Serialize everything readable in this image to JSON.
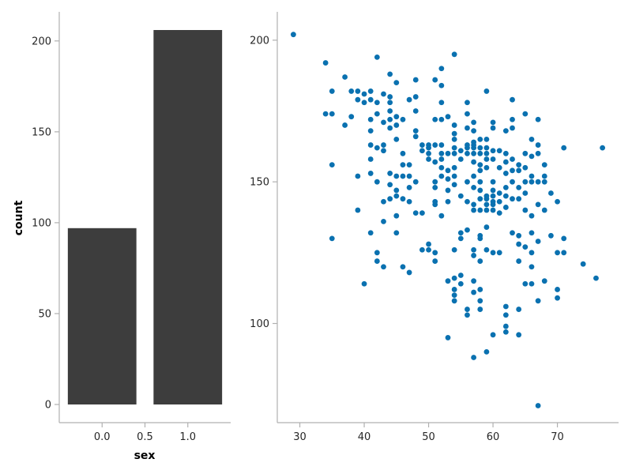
{
  "chart_data": [
    {
      "type": "bar",
      "categories": [
        "0.0",
        "1.0"
      ],
      "values": [
        97,
        206
      ],
      "xlabel": "sex",
      "ylabel": "count",
      "ylim": [
        -10,
        216
      ],
      "yticks": [
        0,
        50,
        100,
        150,
        200
      ],
      "xticks": [
        "0.0",
        "0.5",
        "1.0"
      ],
      "x_positions": [
        0,
        1
      ],
      "bar_color": "#3d3d3d",
      "grid": false
    },
    {
      "type": "scatter",
      "xlabel": "",
      "ylabel": "",
      "xlim": [
        26.5,
        79.5
      ],
      "ylim": [
        65,
        210
      ],
      "xticks": [
        30,
        40,
        50,
        60,
        70
      ],
      "yticks": [
        100,
        150,
        200
      ],
      "point_color": "#0a71b0",
      "grid": false,
      "points": [
        [
          29,
          202
        ],
        [
          34,
          192
        ],
        [
          35,
          182
        ],
        [
          34,
          174
        ],
        [
          35,
          174
        ],
        [
          35,
          156
        ],
        [
          35,
          130
        ],
        [
          37,
          187
        ],
        [
          37,
          170
        ],
        [
          38,
          182
        ],
        [
          38,
          173
        ],
        [
          39,
          182
        ],
        [
          39,
          179
        ],
        [
          39,
          152
        ],
        [
          39,
          140
        ],
        [
          40,
          181
        ],
        [
          40,
          178
        ],
        [
          40,
          114
        ],
        [
          41,
          182
        ],
        [
          41,
          179
        ],
        [
          41,
          172
        ],
        [
          41,
          168
        ],
        [
          41,
          163
        ],
        [
          41,
          158
        ],
        [
          41,
          153
        ],
        [
          41,
          132
        ],
        [
          42,
          194
        ],
        [
          42,
          178
        ],
        [
          42,
          174
        ],
        [
          42,
          162
        ],
        [
          42,
          150
        ],
        [
          42,
          125
        ],
        [
          42,
          122
        ],
        [
          43,
          181
        ],
        [
          43,
          171
        ],
        [
          43,
          163
        ],
        [
          43,
          161
        ],
        [
          43,
          143
        ],
        [
          43,
          136
        ],
        [
          43,
          120
        ],
        [
          44,
          188
        ],
        [
          44,
          180
        ],
        [
          44,
          178
        ],
        [
          44,
          175
        ],
        [
          44,
          172
        ],
        [
          44,
          169
        ],
        [
          44,
          153
        ],
        [
          44,
          149
        ],
        [
          44,
          144
        ],
        [
          45,
          185
        ],
        [
          45,
          173
        ],
        [
          45,
          170
        ],
        [
          45,
          165
        ],
        [
          45,
          152
        ],
        [
          45,
          147
        ],
        [
          45,
          145
        ],
        [
          45,
          132
        ],
        [
          45,
          138
        ],
        [
          46,
          172
        ],
        [
          46,
          160
        ],
        [
          46,
          156
        ],
        [
          46,
          152
        ],
        [
          46,
          144
        ],
        [
          46,
          120
        ],
        [
          47,
          179
        ],
        [
          47,
          156
        ],
        [
          47,
          152
        ],
        [
          47,
          148
        ],
        [
          47,
          143
        ],
        [
          47,
          118
        ],
        [
          48,
          186
        ],
        [
          48,
          180
        ],
        [
          48,
          175
        ],
        [
          48,
          168
        ],
        [
          48,
          166
        ],
        [
          48,
          150
        ],
        [
          48,
          139
        ],
        [
          49,
          163
        ],
        [
          49,
          161
        ],
        [
          49,
          139
        ],
        [
          49,
          126
        ],
        [
          50,
          163
        ],
        [
          50,
          162
        ],
        [
          50,
          160
        ],
        [
          50,
          158
        ],
        [
          50,
          128
        ],
        [
          50,
          126
        ],
        [
          51,
          186
        ],
        [
          51,
          172
        ],
        [
          51,
          163
        ],
        [
          51,
          157
        ],
        [
          51,
          150
        ],
        [
          51,
          148
        ],
        [
          51,
          143
        ],
        [
          51,
          142
        ],
        [
          51,
          125
        ],
        [
          51,
          122
        ],
        [
          52,
          190
        ],
        [
          52,
          184
        ],
        [
          52,
          178
        ],
        [
          52,
          172
        ],
        [
          52,
          163
        ],
        [
          52,
          160
        ],
        [
          52,
          158
        ],
        [
          52,
          155
        ],
        [
          52,
          152
        ],
        [
          52,
          138
        ],
        [
          53,
          173
        ],
        [
          53,
          160
        ],
        [
          53,
          154
        ],
        [
          53,
          151
        ],
        [
          53,
          147
        ],
        [
          53,
          143
        ],
        [
          53,
          115
        ],
        [
          53,
          95
        ],
        [
          54,
          195
        ],
        [
          54,
          170
        ],
        [
          54,
          167
        ],
        [
          54,
          165
        ],
        [
          54,
          162
        ],
        [
          54,
          160
        ],
        [
          54,
          155
        ],
        [
          54,
          152
        ],
        [
          54,
          149
        ],
        [
          54,
          126
        ],
        [
          54,
          116
        ],
        [
          54,
          112
        ],
        [
          54,
          110
        ],
        [
          54,
          108
        ],
        [
          55,
          161
        ],
        [
          55,
          158
        ],
        [
          55,
          145
        ],
        [
          55,
          132
        ],
        [
          55,
          130
        ],
        [
          55,
          117
        ],
        [
          55,
          114
        ],
        [
          56,
          178
        ],
        [
          56,
          174
        ],
        [
          56,
          169
        ],
        [
          56,
          163
        ],
        [
          56,
          162
        ],
        [
          56,
          160
        ],
        [
          56,
          150
        ],
        [
          56,
          143
        ],
        [
          56,
          133
        ],
        [
          56,
          105
        ],
        [
          56,
          103
        ],
        [
          57,
          171
        ],
        [
          57,
          168
        ],
        [
          57,
          164
        ],
        [
          57,
          163
        ],
        [
          57,
          162
        ],
        [
          57,
          160
        ],
        [
          57,
          157
        ],
        [
          57,
          152
        ],
        [
          57,
          148
        ],
        [
          57,
          142
        ],
        [
          57,
          140
        ],
        [
          57,
          126
        ],
        [
          57,
          124
        ],
        [
          57,
          115
        ],
        [
          57,
          111
        ],
        [
          57,
          88
        ],
        [
          58,
          165
        ],
        [
          58,
          162
        ],
        [
          58,
          160
        ],
        [
          58,
          156
        ],
        [
          58,
          154
        ],
        [
          58,
          150
        ],
        [
          58,
          147
        ],
        [
          58,
          144
        ],
        [
          58,
          140
        ],
        [
          58,
          131
        ],
        [
          58,
          130
        ],
        [
          58,
          122
        ],
        [
          58,
          112
        ],
        [
          58,
          108
        ],
        [
          58,
          105
        ],
        [
          59,
          182
        ],
        [
          59,
          165
        ],
        [
          59,
          162
        ],
        [
          59,
          160
        ],
        [
          59,
          158
        ],
        [
          59,
          155
        ],
        [
          59,
          145
        ],
        [
          59,
          144
        ],
        [
          59,
          142
        ],
        [
          59,
          140
        ],
        [
          59,
          134
        ],
        [
          59,
          126
        ],
        [
          59,
          90
        ],
        [
          60,
          171
        ],
        [
          60,
          169
        ],
        [
          60,
          161
        ],
        [
          60,
          158
        ],
        [
          60,
          150
        ],
        [
          60,
          147
        ],
        [
          60,
          145
        ],
        [
          60,
          143
        ],
        [
          60,
          142
        ],
        [
          60,
          140
        ],
        [
          60,
          125
        ],
        [
          60,
          96
        ],
        [
          61,
          161
        ],
        [
          61,
          155
        ],
        [
          61,
          146
        ],
        [
          61,
          143
        ],
        [
          61,
          139
        ],
        [
          61,
          125
        ],
        [
          62,
          168
        ],
        [
          62,
          160
        ],
        [
          62,
          157
        ],
        [
          62,
          153
        ],
        [
          62,
          148
        ],
        [
          62,
          145
        ],
        [
          62,
          141
        ],
        [
          62,
          106
        ],
        [
          62,
          103
        ],
        [
          62,
          99
        ],
        [
          62,
          97
        ],
        [
          63,
          179
        ],
        [
          63,
          172
        ],
        [
          63,
          169
        ],
        [
          63,
          158
        ],
        [
          63,
          154
        ],
        [
          63,
          150
        ],
        [
          63,
          144
        ],
        [
          63,
          132
        ],
        [
          64,
          156
        ],
        [
          64,
          154
        ],
        [
          64,
          148
        ],
        [
          64,
          144
        ],
        [
          64,
          131
        ],
        [
          64,
          128
        ],
        [
          64,
          122
        ],
        [
          64,
          105
        ],
        [
          64,
          96
        ],
        [
          65,
          174
        ],
        [
          65,
          160
        ],
        [
          65,
          155
        ],
        [
          65,
          150
        ],
        [
          65,
          146
        ],
        [
          65,
          140
        ],
        [
          65,
          127
        ],
        [
          65,
          114
        ],
        [
          66,
          165
        ],
        [
          66,
          159
        ],
        [
          66,
          152
        ],
        [
          66,
          150
        ],
        [
          66,
          138
        ],
        [
          66,
          132
        ],
        [
          66,
          125
        ],
        [
          66,
          120
        ],
        [
          66,
          114
        ],
        [
          67,
          172
        ],
        [
          67,
          163
        ],
        [
          67,
          160
        ],
        [
          67,
          150
        ],
        [
          67,
          142
        ],
        [
          67,
          129
        ],
        [
          67,
          108
        ],
        [
          67,
          71
        ],
        [
          68,
          156
        ],
        [
          68,
          152
        ],
        [
          68,
          150
        ],
        [
          68,
          140
        ],
        [
          68,
          115
        ],
        [
          69,
          146
        ],
        [
          69,
          131
        ],
        [
          70,
          143
        ],
        [
          70,
          125
        ],
        [
          70,
          112
        ],
        [
          70,
          109
        ],
        [
          71,
          162
        ],
        [
          71,
          130
        ],
        [
          71,
          125
        ],
        [
          74,
          121
        ],
        [
          76,
          116
        ],
        [
          77,
          162
        ]
      ]
    }
  ]
}
